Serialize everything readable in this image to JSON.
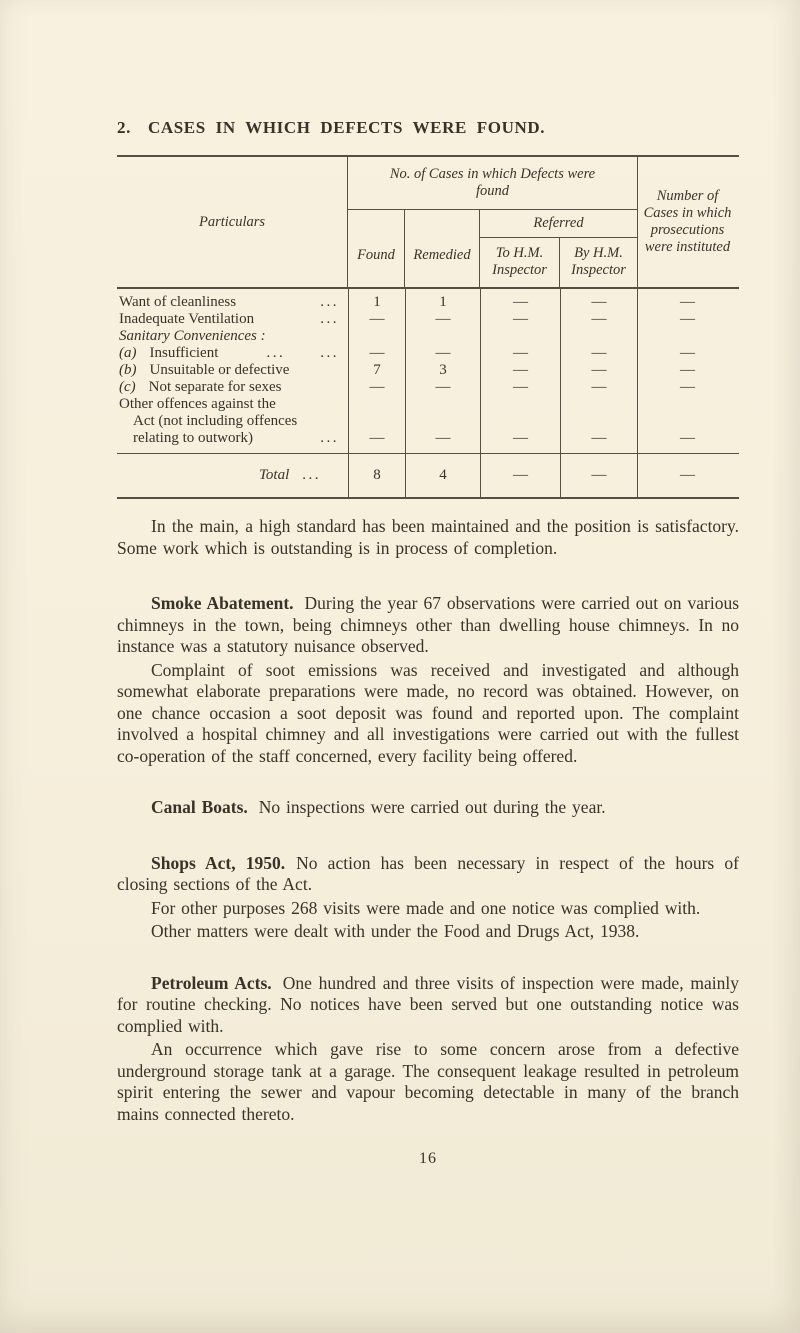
{
  "colors": {
    "paper": "#f6efdc",
    "ink": "#38332a"
  },
  "title": {
    "number": "2.",
    "text": "CASES IN WHICH DEFECTS WERE FOUND."
  },
  "table": {
    "header": {
      "particulars": "Particulars",
      "cases_group": "No. of Cases in which Defects were found",
      "found": "Found",
      "remedied": "Remedied",
      "referred": "Referred",
      "to_hm": "To H.M. Inspector",
      "by_hm": "By H.M. Inspector",
      "prosecutions": "Number of Cases in which prosecutions were instituted"
    },
    "rows": [
      {
        "label": "Want of cleanliness",
        "leader": "...",
        "values": [
          "1",
          "1",
          "—",
          "—",
          "—"
        ]
      },
      {
        "label": "Inadequate Ventilation",
        "leader": "...",
        "values": [
          "—",
          "—",
          "—",
          "—",
          "—"
        ]
      },
      {
        "label": "Sanitary Conveniences :",
        "leader": "",
        "values": [
          "",
          "",
          "",
          "",
          ""
        ]
      },
      {
        "prefix": "(a)",
        "label": "Insufficient",
        "leader": "...  ...",
        "values": [
          "—",
          "—",
          "—",
          "—",
          "—"
        ]
      },
      {
        "prefix": "(b)",
        "label": "Unsuitable or defective",
        "leader": "",
        "values": [
          "7",
          "3",
          "—",
          "—",
          "—"
        ]
      },
      {
        "prefix": "(c)",
        "label": "Not separate for sexes",
        "leader": "",
        "values": [
          "—",
          "—",
          "—",
          "—",
          "—"
        ]
      },
      {
        "lines": [
          "Other offences against the",
          "Act (not including offences",
          "relating to outwork)"
        ],
        "leader": "...",
        "values": [
          "—",
          "—",
          "—",
          "—",
          "—"
        ]
      }
    ],
    "total": {
      "label": "Total",
      "leader": "...",
      "values": [
        "8",
        "4",
        "—",
        "—",
        "—"
      ]
    }
  },
  "paragraphs": [
    {
      "lead": "",
      "text": "In the main, a high standard has been maintained and the position is satisfactory.  Some work which is outstanding is in process of completion."
    },
    {
      "lead": "Smoke Abatement.",
      "text": "During the year 67 observations were carried out on various chimneys in the town, being chimneys other than dwelling house chimneys.  In no instance was a statutory nuisance observed."
    },
    {
      "lead": "",
      "text": "Complaint of soot emissions was received and investigated and although somewhat elaborate preparations were made, no record was obtained.  However, on one chance occasion a soot deposit was found and reported upon.  The complaint involved a hospital chimney and all investigations were carried out with the fullest co-operation of the staff concerned, every facility being offered."
    },
    {
      "lead": "Canal Boats.",
      "text": "No inspections were carried out during the year."
    },
    {
      "lead": "Shops Act, 1950.",
      "text": "No action has been necessary in respect of the hours of closing sections of the Act."
    },
    {
      "lead": "",
      "text": "For other purposes 268 visits were made and one notice was complied with."
    },
    {
      "lead": "",
      "text": "Other matters were dealt with under the Food and Drugs Act, 1938."
    },
    {
      "lead": "Petroleum Acts.",
      "text": "One hundred and three visits of inspection were made, mainly for routine checking.  No notices have been served but one outstanding notice was complied with."
    },
    {
      "lead": "",
      "text": "An occurrence which gave rise to some concern arose from a defective underground storage tank at a garage.  The consequent leakage resulted in petroleum spirit entering the sewer and vapour becoming detectable in many of the branch mains connected thereto."
    }
  ],
  "page_number": "16"
}
